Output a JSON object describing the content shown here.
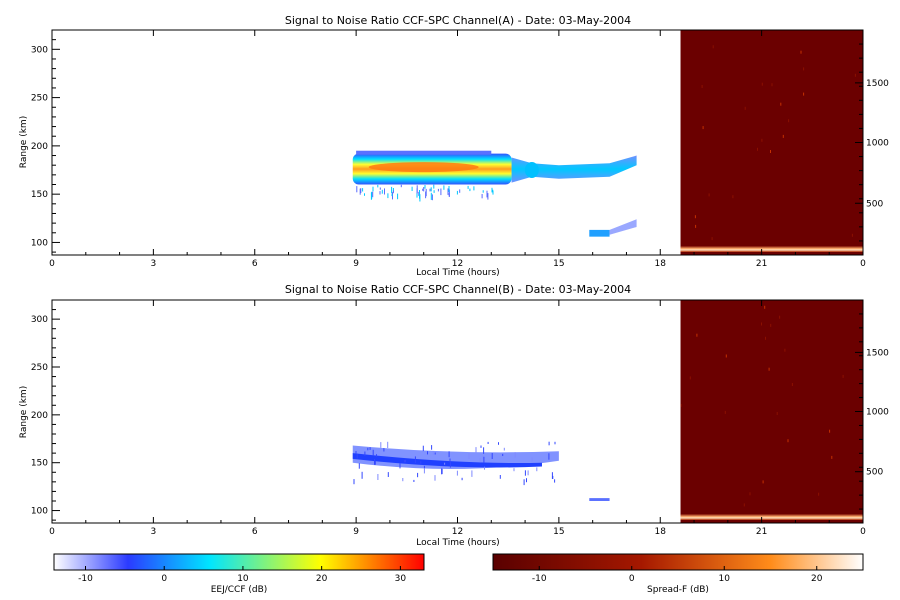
{
  "chart_data": [
    {
      "type": "heatmap",
      "title": "Signal to Noise Ratio CCF-SPC Channel(A) - Date: 03-May-2004",
      "xlabel": "Local Time (hours)",
      "ylabel": "Range (km)",
      "xlim": [
        0,
        24
      ],
      "x_ticks": [
        "0",
        "3",
        "6",
        "9",
        "12",
        "15",
        "18",
        "21",
        "0"
      ],
      "ylim": [
        87,
        320
      ],
      "y_ticks": [
        "100",
        "150",
        "200",
        "250",
        "300"
      ],
      "right_y_ticks": [
        "500",
        "1000",
        "1500"
      ],
      "eej_ccf_echoes": [
        {
          "name": "main layer",
          "t_start": 8.9,
          "t_end": 13.6,
          "range_low": 160,
          "range_high": 192,
          "peak_time": 11.0,
          "peak_range": 178,
          "peak_snr_db": 24
        },
        {
          "name": "tail",
          "t_start": 13.6,
          "t_end": 17.3,
          "range_low": 165,
          "range_high": 190,
          "peak_snr_db": 6
        },
        {
          "name": "low layer",
          "t_start": 15.9,
          "t_end": 17.3,
          "range_low": 104,
          "range_high": 124,
          "peak_snr_db": 0
        }
      ],
      "spread_f_block": {
        "t_start": 18.6,
        "t_end": 24.0,
        "background_db": -13,
        "bottom_band_db": 22
      }
    },
    {
      "type": "heatmap",
      "title": "Signal to Noise Ratio CCF-SPC Channel(B) - Date: 03-May-2004",
      "xlabel": "Local Time (hours)",
      "ylabel": "Range (km)",
      "xlim": [
        0,
        24
      ],
      "x_ticks": [
        "0",
        "3",
        "6",
        "9",
        "12",
        "15",
        "18",
        "21",
        "0"
      ],
      "ylim": [
        87,
        320
      ],
      "y_ticks": [
        "100",
        "150",
        "200",
        "250",
        "300"
      ],
      "right_y_ticks": [
        "500",
        "1000",
        "1500"
      ],
      "eej_ccf_echoes": [
        {
          "name": "main layer",
          "t_start": 8.9,
          "t_end": 15.0,
          "range_low": 140,
          "range_high": 170,
          "peak_time": 12.0,
          "peak_range": 150,
          "peak_snr_db": -4
        },
        {
          "name": "low layer",
          "t_start": 15.9,
          "t_end": 16.5,
          "range_low": 110,
          "range_high": 113,
          "peak_snr_db": -6
        }
      ],
      "spread_f_block": {
        "t_start": 18.6,
        "t_end": 24.0,
        "background_db": -13,
        "bottom_band_db": 22
      }
    },
    {
      "type": "colorbar",
      "label": "EEJ/CCF (dB)",
      "range": [
        -14,
        33
      ],
      "ticks": [
        "-10",
        "0",
        "10",
        "20",
        "30"
      ],
      "colormap": [
        "#ffffff",
        "#2b3bff",
        "#00e5ff",
        "#ffff00",
        "#ff0000"
      ]
    },
    {
      "type": "colorbar",
      "label": "Spread-F (dB)",
      "range": [
        -15,
        25
      ],
      "ticks": [
        "-10",
        "0",
        "10",
        "20"
      ],
      "colormap": [
        "#5a0000",
        "#c42a00",
        "#ff8c1a",
        "#ffffff"
      ]
    }
  ]
}
